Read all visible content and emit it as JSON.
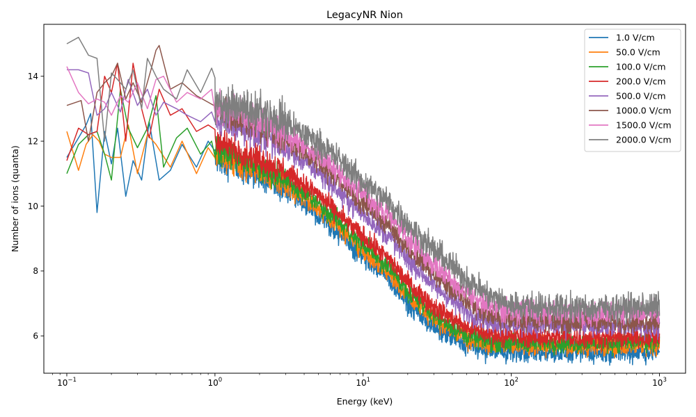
{
  "chart_data": {
    "type": "line",
    "title": "LegacyNR Nion",
    "xlabel": "Energy (keV)",
    "ylabel": "Number of ions (quanta)",
    "xscale": "log",
    "xlim": [
      0.07,
      1500
    ],
    "ylim": [
      4.85,
      15.6
    ],
    "x_ticks": [
      {
        "value": 0.1,
        "base": "10",
        "exp": "−1"
      },
      {
        "value": 1,
        "base": "10",
        "exp": "0"
      },
      {
        "value": 10,
        "base": "10",
        "exp": "1"
      },
      {
        "value": 100,
        "base": "10",
        "exp": "2"
      },
      {
        "value": 1000,
        "base": "10",
        "exp": "3"
      }
    ],
    "y_ticks": [
      {
        "value": 6,
        "label": "6"
      },
      {
        "value": 8,
        "label": "8"
      },
      {
        "value": 10,
        "label": "10"
      },
      {
        "value": 12,
        "label": "12"
      },
      {
        "value": 14,
        "label": "14"
      }
    ],
    "legend_position": "top-right",
    "grid": false,
    "x_range": [
      0.1,
      1000
    ],
    "series": [
      {
        "name": "1.0 V/cm",
        "color": "#1f77b4",
        "low_energy": {
          "x": [
            0.1,
            0.12,
            0.135,
            0.145,
            0.16,
            0.18,
            0.2,
            0.22,
            0.25,
            0.28,
            0.32,
            0.36,
            0.42,
            0.5,
            0.6,
            0.75,
            0.9
          ],
          "y": [
            11.5,
            12.1,
            12.5,
            12.85,
            9.8,
            12.3,
            11.3,
            12.4,
            10.3,
            11.4,
            10.8,
            12.6,
            10.8,
            11.1,
            11.9,
            11.2,
            12.0
          ]
        },
        "trend": {
          "x": [
            1,
            2,
            3,
            5,
            7,
            10,
            15,
            20,
            30,
            50,
            70,
            100,
            300,
            1000
          ],
          "y": [
            11.5,
            10.9,
            10.5,
            9.75,
            9.1,
            8.45,
            7.75,
            7.0,
            6.25,
            5.7,
            5.55,
            5.5,
            5.48,
            5.5
          ]
        },
        "noise": 0.28
      },
      {
        "name": "50.0 V/cm",
        "color": "#ff7f0e",
        "low_energy": {
          "x": [
            0.1,
            0.12,
            0.135,
            0.15,
            0.165,
            0.18,
            0.2,
            0.23,
            0.26,
            0.3,
            0.35,
            0.4,
            0.5,
            0.6,
            0.75,
            0.9
          ],
          "y": [
            12.3,
            11.1,
            11.9,
            12.2,
            12.0,
            11.6,
            11.5,
            11.5,
            12.5,
            11.0,
            12.2,
            11.9,
            11.2,
            12.0,
            11.0,
            11.8
          ]
        },
        "trend": {
          "x": [
            1,
            2,
            3,
            5,
            7,
            10,
            15,
            20,
            30,
            50,
            70,
            100,
            300,
            1000
          ],
          "y": [
            11.6,
            11.05,
            10.65,
            9.95,
            9.3,
            8.65,
            7.95,
            7.25,
            6.5,
            5.9,
            5.75,
            5.7,
            5.68,
            5.7
          ]
        },
        "noise": 0.27
      },
      {
        "name": "100.0 V/cm",
        "color": "#2ca02c",
        "low_energy": {
          "x": [
            0.1,
            0.12,
            0.14,
            0.16,
            0.18,
            0.2,
            0.23,
            0.26,
            0.3,
            0.35,
            0.4,
            0.45,
            0.55,
            0.65,
            0.8,
            0.95
          ],
          "y": [
            11.0,
            11.9,
            12.2,
            12.3,
            11.6,
            10.8,
            13.6,
            12.4,
            11.8,
            12.4,
            13.4,
            11.2,
            12.1,
            12.4,
            11.6,
            12.0
          ]
        },
        "trend": {
          "x": [
            1,
            2,
            3,
            5,
            7,
            10,
            15,
            20,
            30,
            50,
            70,
            100,
            300,
            1000
          ],
          "y": [
            11.75,
            11.2,
            10.8,
            10.1,
            9.45,
            8.8,
            8.1,
            7.4,
            6.65,
            6.0,
            5.85,
            5.8,
            5.78,
            5.8
          ]
        },
        "noise": 0.27
      },
      {
        "name": "200.0 V/cm",
        "color": "#d62728",
        "low_energy": {
          "x": [
            0.1,
            0.12,
            0.14,
            0.16,
            0.18,
            0.2,
            0.22,
            0.25,
            0.28,
            0.32,
            0.36,
            0.42,
            0.5,
            0.6,
            0.75,
            0.9
          ],
          "y": [
            11.4,
            12.4,
            12.2,
            12.3,
            14.0,
            13.5,
            14.4,
            12.0,
            14.4,
            13.0,
            12.1,
            13.6,
            12.8,
            13.0,
            12.3,
            12.5
          ]
        },
        "trend": {
          "x": [
            1,
            2,
            3,
            5,
            7,
            10,
            15,
            20,
            30,
            50,
            70,
            100,
            300,
            1000
          ],
          "y": [
            12.0,
            11.45,
            11.05,
            10.35,
            9.7,
            9.05,
            8.35,
            7.65,
            6.9,
            6.25,
            6.05,
            5.98,
            5.95,
            5.95
          ]
        },
        "noise": 0.28
      },
      {
        "name": "500.0 V/cm",
        "color": "#9467bd",
        "low_energy": {
          "x": [
            0.1,
            0.12,
            0.14,
            0.16,
            0.18,
            0.2,
            0.23,
            0.26,
            0.3,
            0.35,
            0.4,
            0.45,
            0.55,
            0.65,
            0.8,
            0.95
          ],
          "y": [
            14.2,
            14.2,
            14.1,
            12.8,
            13.0,
            13.5,
            12.9,
            13.9,
            13.1,
            13.6,
            12.8,
            13.2,
            13.0,
            12.8,
            12.6,
            12.9
          ]
        },
        "trend": {
          "x": [
            1,
            2,
            3,
            5,
            7,
            10,
            15,
            20,
            30,
            50,
            70,
            100,
            300,
            1000
          ],
          "y": [
            12.7,
            12.15,
            11.75,
            11.05,
            10.4,
            9.75,
            9.05,
            8.35,
            7.55,
            6.75,
            6.45,
            6.35,
            6.3,
            6.3
          ]
        },
        "noise": 0.3
      },
      {
        "name": "1000.0 V/cm",
        "color": "#8c564b",
        "low_energy": {
          "x": [
            0.1,
            0.125,
            0.14,
            0.16,
            0.18,
            0.2,
            0.22,
            0.25,
            0.28,
            0.32,
            0.37,
            0.4,
            0.42,
            0.5,
            0.6,
            0.75,
            0.9
          ],
          "y": [
            13.1,
            13.25,
            12.0,
            13.5,
            13.8,
            14.0,
            14.4,
            13.3,
            13.8,
            13.2,
            14.2,
            14.8,
            14.95,
            13.6,
            13.8,
            13.4,
            13.2
          ]
        },
        "trend": {
          "x": [
            1,
            2,
            3,
            5,
            7,
            10,
            15,
            20,
            30,
            50,
            70,
            100,
            300,
            1000
          ],
          "y": [
            12.95,
            12.45,
            12.05,
            11.35,
            10.75,
            10.1,
            9.4,
            8.7,
            7.9,
            7.05,
            6.65,
            6.5,
            6.45,
            6.45
          ]
        },
        "noise": 0.3
      },
      {
        "name": "1500.0 V/cm",
        "color": "#e377c2",
        "low_energy": {
          "x": [
            0.1,
            0.12,
            0.14,
            0.16,
            0.18,
            0.2,
            0.23,
            0.26,
            0.3,
            0.35,
            0.4,
            0.45,
            0.55,
            0.65,
            0.8,
            0.95
          ],
          "y": [
            14.3,
            13.5,
            13.15,
            13.3,
            13.2,
            12.8,
            13.4,
            13.2,
            13.8,
            13.0,
            13.9,
            14.0,
            13.2,
            13.5,
            13.3,
            13.6
          ]
        },
        "trend": {
          "x": [
            1,
            2,
            3,
            5,
            7,
            10,
            15,
            20,
            30,
            50,
            70,
            100,
            300,
            1000
          ],
          "y": [
            13.05,
            12.6,
            12.25,
            11.6,
            11.0,
            10.35,
            9.7,
            9.0,
            8.2,
            7.3,
            6.9,
            6.75,
            6.7,
            6.75
          ]
        },
        "noise": 0.32
      },
      {
        "name": "2000.0 V/cm",
        "color": "#7f7f7f",
        "low_energy": {
          "x": [
            0.1,
            0.12,
            0.14,
            0.16,
            0.18,
            0.2,
            0.22,
            0.25,
            0.28,
            0.32,
            0.35,
            0.4,
            0.45,
            0.55,
            0.65,
            0.8,
            0.95
          ],
          "y": [
            15.0,
            15.2,
            14.65,
            14.55,
            12.0,
            14.1,
            13.9,
            13.6,
            14.2,
            13.0,
            14.55,
            14.0,
            13.6,
            13.3,
            14.2,
            13.5,
            14.25
          ]
        },
        "trend": {
          "x": [
            1,
            2,
            3,
            5,
            7,
            10,
            15,
            20,
            30,
            50,
            70,
            100,
            300,
            1000
          ],
          "y": [
            13.2,
            12.85,
            12.55,
            11.95,
            11.4,
            10.75,
            10.1,
            9.45,
            8.65,
            7.75,
            7.25,
            6.95,
            6.85,
            6.9
          ]
        },
        "noise": 0.38
      }
    ]
  }
}
